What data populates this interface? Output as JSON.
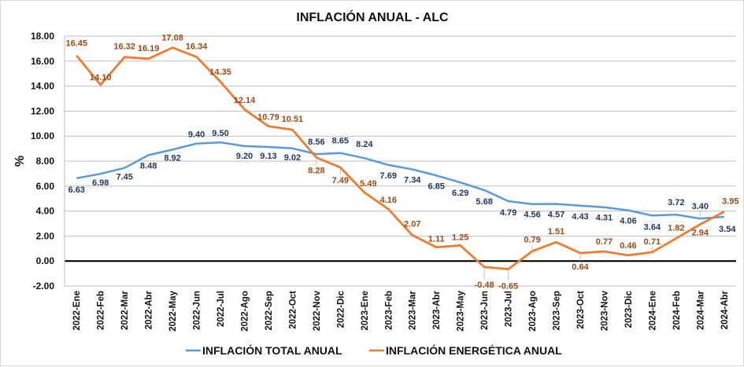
{
  "chart_data": {
    "type": "line",
    "title": "INFLACIÓN ANUAL - ALC",
    "xlabel": "",
    "ylabel": "%",
    "ylim": [
      -2,
      18
    ],
    "ytick_step": 2,
    "yticks": [
      "18.00",
      "16.00",
      "14.00",
      "12.00",
      "10.00",
      "8.00",
      "6.00",
      "4.00",
      "2.00",
      "0.00",
      "-2.00"
    ],
    "grid": true,
    "legend_position": "bottom",
    "categories": [
      "2022-Ene",
      "2022-Feb",
      "2022-Mar",
      "2022-Abr",
      "2022-May",
      "2022-Jun",
      "2022-Jul",
      "2022-Ago",
      "2022-Sep",
      "2022-Oct",
      "2022-Nov",
      "2022-Dic",
      "2023-Ene",
      "2023-Feb",
      "2023-Mar",
      "2023-Abr",
      "2023-May",
      "2023-Jun",
      "2023-Jul",
      "2023-Ago",
      "2023-Sep",
      "2023-Oct",
      "2023-Nov",
      "2023-Dic",
      "2024-Ene",
      "2024-Feb",
      "2024-Mar",
      "2024-Abr"
    ],
    "series": [
      {
        "name": "INFLACIÓN TOTAL ANUAL",
        "color": "#5B9BD5",
        "label_color": "#1F3864",
        "values": [
          6.63,
          6.98,
          7.45,
          8.48,
          8.92,
          9.4,
          9.5,
          9.2,
          9.13,
          9.02,
          8.56,
          8.65,
          8.24,
          7.69,
          7.34,
          6.85,
          6.29,
          5.68,
          4.79,
          4.56,
          4.57,
          4.43,
          4.31,
          4.06,
          3.64,
          3.72,
          3.4,
          3.54
        ],
        "labels": [
          "6.63",
          "6.98",
          "7.45",
          "8.48",
          "8.92",
          "9.40",
          "9.50",
          "9.20",
          "9.13",
          "9.02",
          "8.56",
          "8.65",
          "8.24",
          "7.69",
          "7.34",
          "6.85",
          "6.29",
          "5.68",
          "4.79",
          "4.56",
          "4.57",
          "4.43",
          "4.31",
          "4.06",
          "3.64",
          "3.72",
          "3.40",
          "3.54"
        ]
      },
      {
        "name": "INFLACIÓN ENERGÉTICA ANUAL",
        "color": "#ED7D31",
        "label_color": "#9C4A14",
        "values": [
          16.45,
          14.1,
          16.32,
          16.19,
          17.08,
          16.34,
          14.35,
          12.14,
          10.79,
          10.51,
          8.28,
          7.49,
          5.49,
          4.16,
          2.07,
          1.11,
          1.25,
          -0.48,
          -0.65,
          0.79,
          1.51,
          0.64,
          0.77,
          0.46,
          0.71,
          1.82,
          2.94,
          3.95
        ],
        "labels": [
          "16.45",
          "14.10",
          "16.32",
          "16.19",
          "17.08",
          "16.34",
          "14.35",
          "12.14",
          "10.79",
          "10.51",
          "8.28",
          "7.49",
          "5.49",
          "4.16",
          "2.07",
          "1.11",
          "1.25",
          "-0.48",
          "-0.65",
          "0.79",
          "1.51",
          "0.64",
          "0.77",
          "0.46",
          "0.71",
          "1.82",
          "2.94",
          "3.95"
        ]
      }
    ]
  }
}
